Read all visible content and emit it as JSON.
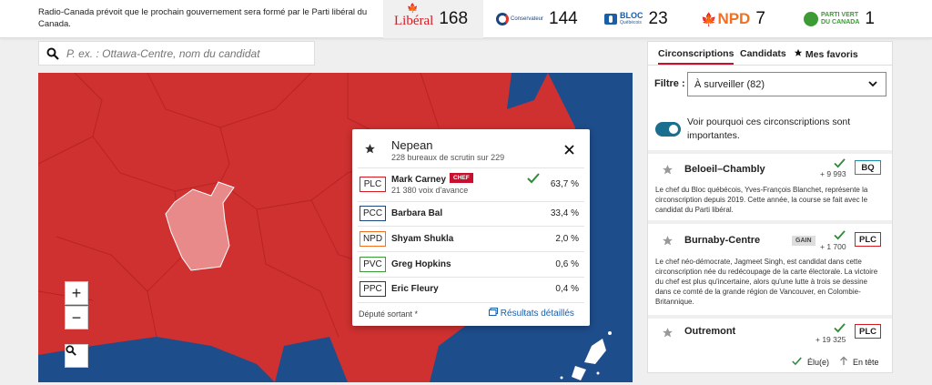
{
  "header": {
    "prediction_text": "Radio-Canada prévoit que le prochain gouvernement sera formé par le Parti libéral du Canada.",
    "parties": [
      {
        "logo": "Libéral",
        "count": "168",
        "color": "#d71920"
      },
      {
        "logo": "Conservateur",
        "count": "144",
        "color": "#1a4782"
      },
      {
        "logo": "BLOC",
        "logo_sub": "Québécois",
        "count": "23",
        "color": "#1a5ea8"
      },
      {
        "logo": "NPD",
        "count": "7",
        "color": "#f37021"
      },
      {
        "logo": "PARTI VERT",
        "logo_sub": "DU CANADA",
        "count": "1",
        "color": "#3d9b35"
      }
    ]
  },
  "search": {
    "placeholder": "P. ex. : Ottawa-Centre, nom du candidat",
    "icon": "search-icon"
  },
  "map": {
    "colors": {
      "liberal": "#cf3030",
      "conservative": "#1e4d8c",
      "selected": "#e88a8a"
    },
    "zoom_in": "+",
    "zoom_out": "−",
    "search_icon": "magnifier-icon"
  },
  "popup": {
    "riding": "Nepean",
    "polls": "228 bureaux de scrutin sur 229",
    "candidates": [
      {
        "party": "PLC",
        "name": "Mark Carney",
        "chef": "CHEF",
        "lead": "21 380 voix d'avance",
        "pct": "63,7 %",
        "color": "#d71920",
        "elected": true
      },
      {
        "party": "PCC",
        "name": "Barbara Bal",
        "pct": "33,4 %",
        "color": "#1a4782"
      },
      {
        "party": "NPD",
        "name": "Shyam Shukla",
        "pct": "2,0 %",
        "color": "#f37021"
      },
      {
        "party": "PVC",
        "name": "Greg Hopkins",
        "pct": "0,6 %",
        "color": "#3d9b35"
      },
      {
        "party": "PPC",
        "name": "Eric Fleury",
        "pct": "0,4 %",
        "color": "#3b2a7a"
      }
    ],
    "footnote": "Député sortant *",
    "details_link": "Résultats détaillés"
  },
  "panel": {
    "tabs": [
      "Circonscriptions",
      "Candidats",
      "Mes favoris"
    ],
    "filter_label": "Filtre :",
    "filter_value": "À surveiller (82)",
    "toggle_text": "Voir pourquoi ces circonscriptions sont importantes.",
    "ridings": [
      {
        "name": "Beloeil–Chambly",
        "margin": "+ 9 993",
        "party": "BQ",
        "color": "#1a8fb0",
        "desc": "Le chef du Bloc québécois, Yves-François Blanchet, représente la circonscription depuis 2019. Cette année, la course se fait avec le candidat du Parti libéral."
      },
      {
        "name": "Burnaby-Centre",
        "gain": "GAIN",
        "margin": "+ 1 700",
        "party": "PLC",
        "color": "#d71920",
        "desc": "Le chef néo-démocrate, Jagmeet Singh, est candidat dans cette circonscription née du redécoupage de la carte électorale. La victoire du chef est plus qu'incertaine, alors qu'une lutte à trois se dessine dans ce comté de la grande région de Vancouver, en Colombie-Britannique."
      },
      {
        "name": "Outremont",
        "margin": "+ 19 325",
        "party": "PLC",
        "color": "#d71920"
      }
    ],
    "legend": {
      "elected": "Élu(e)",
      "leading": "En tête"
    }
  }
}
